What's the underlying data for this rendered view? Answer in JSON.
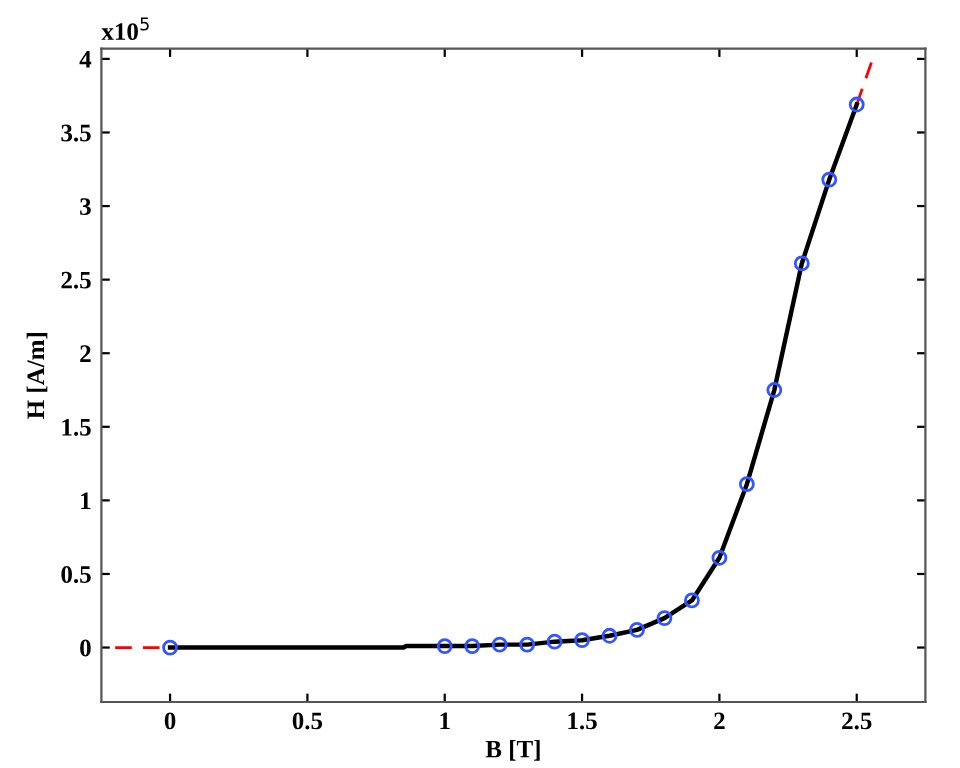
{
  "chart_data": {
    "type": "line",
    "xlabel": "B [T]",
    "ylabel": "H [A/m]",
    "annotations": [
      "x10$^{5}$"
    ],
    "xlim": [
      -0.25,
      2.75
    ],
    "ylim": [
      -0.37,
      4.07
    ],
    "xticks": [
      0,
      0.5,
      1,
      1.5,
      2,
      2.5
    ],
    "yticks": [
      0,
      0.5,
      1,
      1.5,
      2,
      2.5,
      3,
      3.5,
      4
    ],
    "grid": false,
    "legend": false,
    "series": [
      {
        "color": "#ff0000",
        "line_style": "dashed",
        "marker": "none",
        "x": [
          -0.2,
          0
        ],
        "values": [
          0,
          0
        ]
      },
      {
        "color": "#ff0000",
        "line_style": "dashed",
        "marker": "none",
        "x": [
          2.5,
          2.56
        ],
        "values": [
          3.69,
          4.01
        ]
      },
      {
        "color": "#000000",
        "line_style": "solid",
        "marker": "none",
        "x": [
          0,
          0.85,
          0.86,
          1.0,
          1.1,
          1.2,
          1.3,
          1.4,
          1.5,
          1.6,
          1.7,
          1.8,
          1.9,
          2.0,
          2.1,
          2.2,
          2.3,
          2.4,
          2.5
        ],
        "values": [
          0,
          0,
          0.01,
          0.01,
          0.01,
          0.02,
          0.02,
          0.04,
          0.05,
          0.08,
          0.12,
          0.2,
          0.32,
          0.61,
          1.11,
          1.75,
          2.61,
          3.18,
          3.69
        ]
      },
      {
        "type": "scatter",
        "color": "#3355ff",
        "marker": "circle",
        "x": [
          0,
          1.0,
          1.1,
          1.2,
          1.3,
          1.4,
          1.5,
          1.6,
          1.7,
          1.8,
          1.9,
          2.0,
          2.1,
          2.2,
          2.3,
          2.4,
          2.5
        ],
        "values": [
          0,
          0.01,
          0.01,
          0.02,
          0.02,
          0.04,
          0.05,
          0.08,
          0.12,
          0.2,
          0.32,
          0.61,
          1.11,
          1.75,
          2.61,
          3.18,
          3.69
        ]
      }
    ]
  }
}
